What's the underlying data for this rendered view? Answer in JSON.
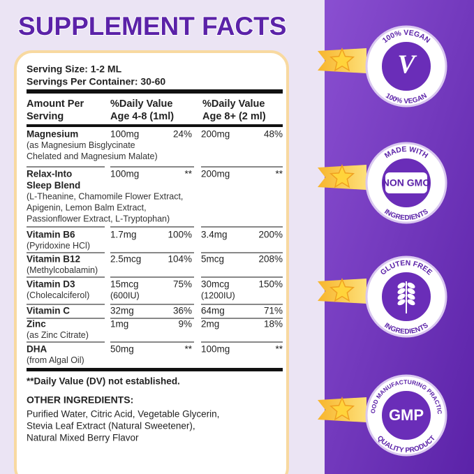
{
  "title": "SUPPLEMENT FACTS",
  "serving_size": "Serving Size: 1-2 ML",
  "servings_per_container": "Servings Per Container: 30-60",
  "table": {
    "headers": [
      [
        "Amount Per",
        "Serving"
      ],
      [
        "%Daily Value",
        "Age 4-8 (1ml)"
      ],
      [
        "%Daily Value",
        "Age 8+ (2 ml)"
      ]
    ],
    "rows": [
      {
        "name": [
          "Magnesium"
        ],
        "note": [
          "(as Magnesium Bisglycinate",
          "Chelated and Magnesium Malate)"
        ],
        "amount_1": [
          "100mg"
        ],
        "dv_1": "24%",
        "amount_2": [
          "200mg"
        ],
        "dv_2": "48%"
      },
      {
        "name": [
          "Relax-Into",
          "Sleep Blend"
        ],
        "note": [
          "(L-Theanine, Chamomile Flower Extract,",
          "Apigenin, Lemon Balm Extract,",
          "Passionflower Extract, L-Tryptophan)"
        ],
        "amount_1": [
          "100mg"
        ],
        "dv_1": "**",
        "amount_2": [
          "200mg"
        ],
        "dv_2": "**"
      },
      {
        "name": [
          "Vitamin B6"
        ],
        "note": [
          "(Pyridoxine HCl)"
        ],
        "amount_1": [
          "1.7mg"
        ],
        "dv_1": "100%",
        "amount_2": [
          "3.4mg"
        ],
        "dv_2": "200%"
      },
      {
        "name": [
          "Vitamin B12"
        ],
        "note": [
          "(Methylcobalamin)"
        ],
        "amount_1": [
          "2.5mcg"
        ],
        "dv_1": "104%",
        "amount_2": [
          "5mcg"
        ],
        "dv_2": "208%"
      },
      {
        "name": [
          "Vitamin D3"
        ],
        "note": [
          "(Cholecalciferol)"
        ],
        "amount_1": [
          "15mcg",
          "(600IU)"
        ],
        "dv_1": "75%",
        "amount_2": [
          "30mcg",
          "(1200IU)"
        ],
        "dv_2": "150%"
      },
      {
        "name": [
          "Vitamin C"
        ],
        "note": [],
        "amount_1": [
          "32mg"
        ],
        "dv_1": "36%",
        "amount_2": [
          "64mg"
        ],
        "dv_2": "71%"
      },
      {
        "name": [
          "Zinc"
        ],
        "note": [
          "(as Zinc Citrate)"
        ],
        "amount_1": [
          "1mg"
        ],
        "dv_1": "9%",
        "amount_2": [
          "2mg"
        ],
        "dv_2": "18%"
      },
      {
        "name": [
          "DHA"
        ],
        "note": [
          "(from Algal Oil)"
        ],
        "amount_1": [
          "50mg"
        ],
        "dv_1": "**",
        "amount_2": [
          "100mg"
        ],
        "dv_2": "**"
      }
    ]
  },
  "footnote": "**Daily Value (DV) not established.",
  "other_ingredients": {
    "heading": "OTHER INGREDIENTS:",
    "lines": [
      "Purified Water, Citric Acid, Vegetable Glycerin,",
      "Stevia Leaf Extract (Natural Sweetener),",
      "Natural Mixed Berry Flavor"
    ]
  },
  "badges": [
    {
      "top": "100% VEGAN",
      "center": "V",
      "bottom": "100% VEGAN"
    },
    {
      "top": "MADE WITH",
      "center": "NON GMO",
      "bottom": "INGREDIENTS"
    },
    {
      "top": "GLUTEN FREE",
      "bottom": "INGREDIENTS"
    },
    {
      "top": "GOOD MANUFACTURING PRACTICE",
      "center": "GMP",
      "bottom": "QUALITY PRODUCT"
    }
  ]
}
